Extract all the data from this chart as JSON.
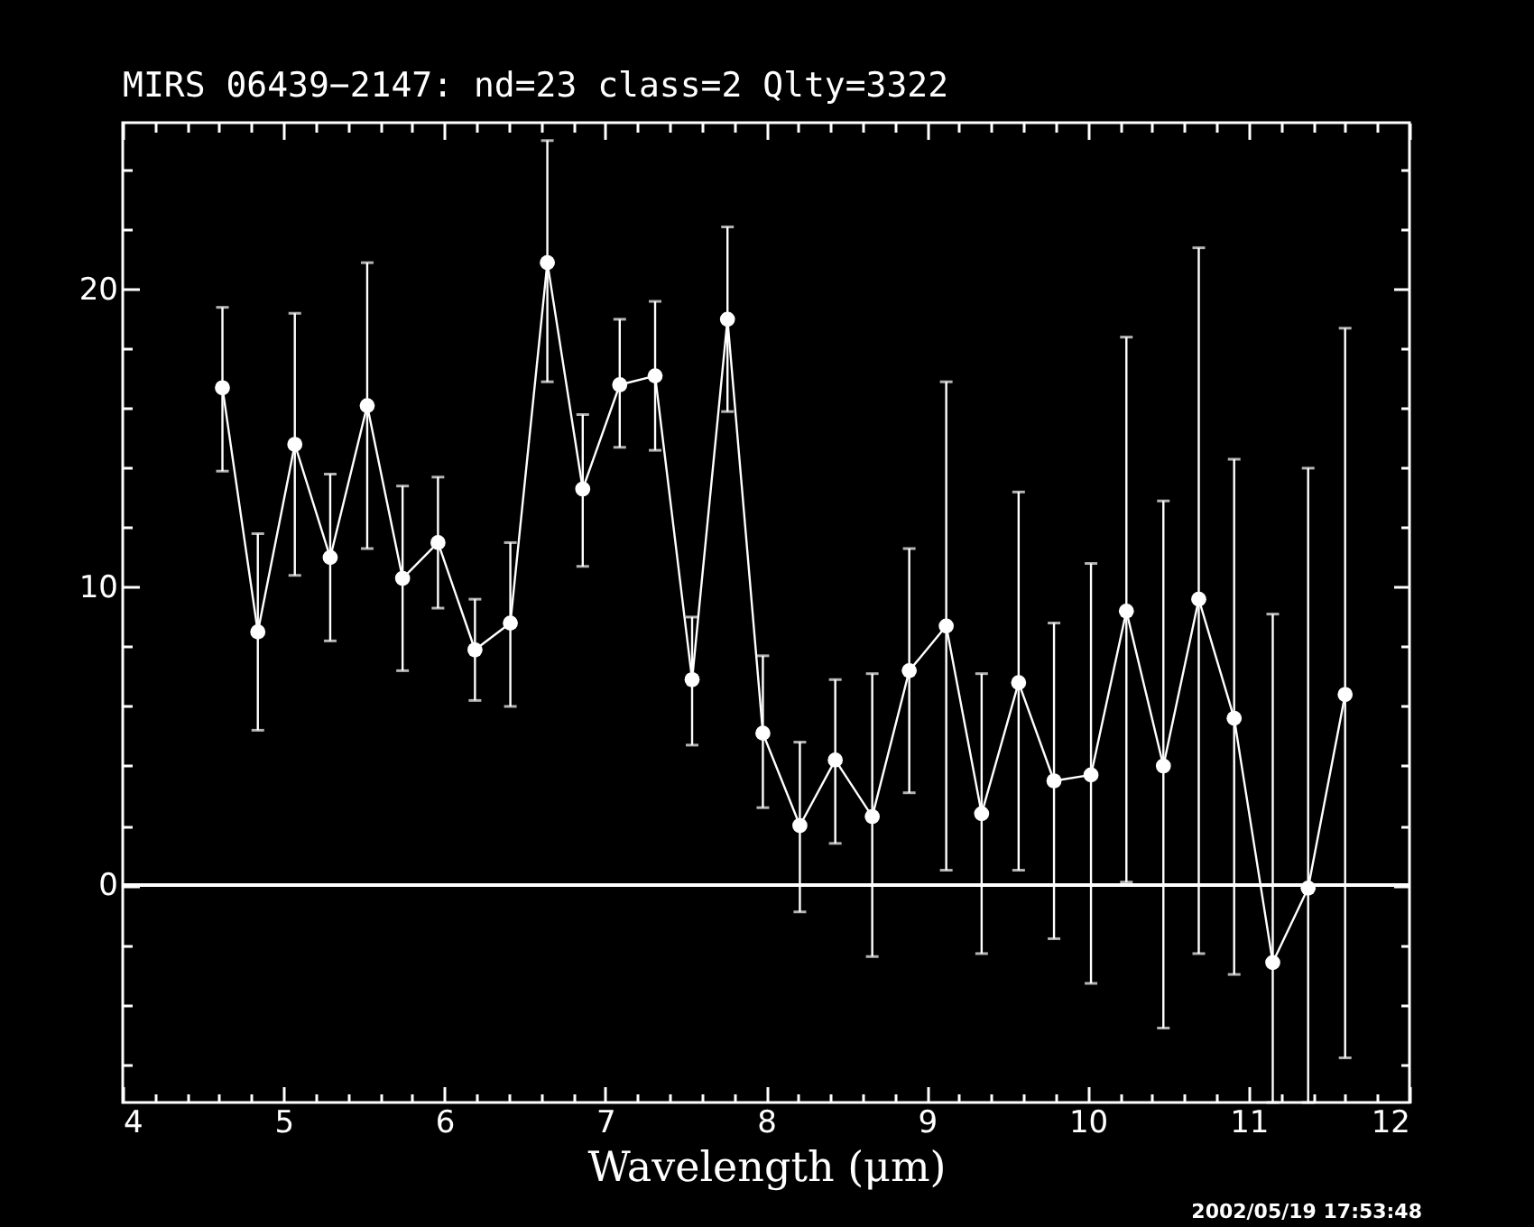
{
  "chart_data": {
    "type": "line",
    "title": "MIRS 06439−2147:    nd=23   class=2   Qlty=3322",
    "xlabel": "Wavelength (μm)",
    "annotations": [
      "2002/05/19 17:53:48"
    ],
    "x": [
      4.62,
      4.84,
      5.07,
      5.29,
      5.52,
      5.74,
      5.96,
      6.19,
      6.41,
      6.64,
      6.86,
      7.09,
      7.31,
      7.54,
      7.76,
      7.98,
      8.21,
      8.43,
      8.66,
      8.89,
      9.12,
      9.34,
      9.57,
      9.79,
      10.02,
      10.24,
      10.47,
      10.69,
      10.91,
      11.15,
      11.37,
      11.6
    ],
    "values": [
      16.7,
      8.5,
      14.8,
      11.0,
      16.1,
      10.3,
      11.5,
      7.9,
      8.8,
      20.9,
      13.3,
      16.8,
      17.1,
      6.9,
      19.0,
      5.1,
      2.0,
      4.2,
      2.3,
      7.2,
      8.7,
      2.4,
      6.8,
      3.5,
      3.7,
      9.2,
      4.0,
      9.6,
      5.6,
      -2.6,
      -0.1,
      6.4
    ],
    "errors": [
      [
        13.9,
        19.4
      ],
      [
        5.2,
        11.8
      ],
      [
        10.4,
        19.2
      ],
      [
        8.2,
        13.8
      ],
      [
        11.3,
        20.9
      ],
      [
        7.2,
        13.4
      ],
      [
        9.3,
        13.7
      ],
      [
        6.2,
        9.6
      ],
      [
        6.0,
        11.5
      ],
      [
        16.9,
        25.0
      ],
      [
        10.7,
        15.8
      ],
      [
        14.7,
        19.0
      ],
      [
        14.6,
        19.6
      ],
      [
        4.7,
        9.0
      ],
      [
        15.9,
        22.1
      ],
      [
        2.6,
        7.7
      ],
      [
        -0.9,
        4.8
      ],
      [
        1.4,
        6.9
      ],
      [
        -2.4,
        7.1
      ],
      [
        3.1,
        11.3
      ],
      [
        0.5,
        16.9
      ],
      [
        -2.3,
        7.1
      ],
      [
        0.5,
        13.2
      ],
      [
        -1.8,
        8.8
      ],
      [
        -3.3,
        10.8
      ],
      [
        0.1,
        18.4
      ],
      [
        -4.8,
        12.9
      ],
      [
        -2.3,
        21.4
      ],
      [
        -3.0,
        14.3
      ],
      [
        -7.3,
        9.1
      ],
      [
        -7.3,
        14.0
      ],
      [
        -5.8,
        18.7
      ]
    ],
    "color": "#ffffff",
    "marker": "circle",
    "line_style": "solid",
    "grid": false,
    "ref_lines": [
      {
        "axis": "y",
        "value": 0,
        "color": "#ffffff"
      }
    ],
    "xlim": [
      4,
      12
    ],
    "ylim": [
      -7.3,
      25.6
    ],
    "xticks": [
      4,
      {
        "value": 4.2,
        "label": null
      },
      {
        "value": 4.4,
        "label": null
      },
      {
        "value": 4.6,
        "label": null
      },
      {
        "value": 4.8,
        "label": null
      },
      5,
      {
        "value": 5.2,
        "label": null
      },
      {
        "value": 5.4,
        "label": null
      },
      {
        "value": 5.6,
        "label": null
      },
      {
        "value": 5.8,
        "label": null
      },
      6,
      {
        "value": 6.2,
        "label": null
      },
      {
        "value": 6.4,
        "label": null
      },
      {
        "value": 6.6,
        "label": null
      },
      {
        "value": 6.8,
        "label": null
      },
      7,
      {
        "value": 7.2,
        "label": null
      },
      {
        "value": 7.4,
        "label": null
      },
      {
        "value": 7.6,
        "label": null
      },
      {
        "value": 7.8,
        "label": null
      },
      8,
      {
        "value": 8.2,
        "label": null
      },
      {
        "value": 8.4,
        "label": null
      },
      {
        "value": 8.6,
        "label": null
      },
      {
        "value": 8.8,
        "label": null
      },
      9,
      {
        "value": 9.2,
        "label": null
      },
      {
        "value": 9.4,
        "label": null
      },
      {
        "value": 9.6,
        "label": null
      },
      {
        "value": 9.8,
        "label": null
      },
      10,
      {
        "value": 10.2,
        "label": null
      },
      {
        "value": 10.4,
        "label": null
      },
      {
        "value": 10.6,
        "label": null
      },
      {
        "value": 10.8,
        "label": null
      },
      11,
      {
        "value": 11.2,
        "label": null
      },
      {
        "value": 11.4,
        "label": null
      },
      {
        "value": 11.6,
        "label": null
      },
      {
        "value": 11.8,
        "label": null
      },
      12
    ],
    "yticks": [
      {
        "value": -6,
        "label": null
      },
      {
        "value": -4,
        "label": null
      },
      {
        "value": -2,
        "label": null
      },
      0,
      {
        "value": 2,
        "label": null
      },
      {
        "value": 4,
        "label": null
      },
      {
        "value": 6,
        "label": null
      },
      {
        "value": 8,
        "label": null
      },
      10,
      {
        "value": 12,
        "label": null
      },
      {
        "value": 14,
        "label": null
      },
      {
        "value": 16,
        "label": null
      },
      {
        "value": 18,
        "label": null
      },
      20,
      {
        "value": 22,
        "label": null
      },
      {
        "value": 24,
        "label": null
      }
    ]
  }
}
